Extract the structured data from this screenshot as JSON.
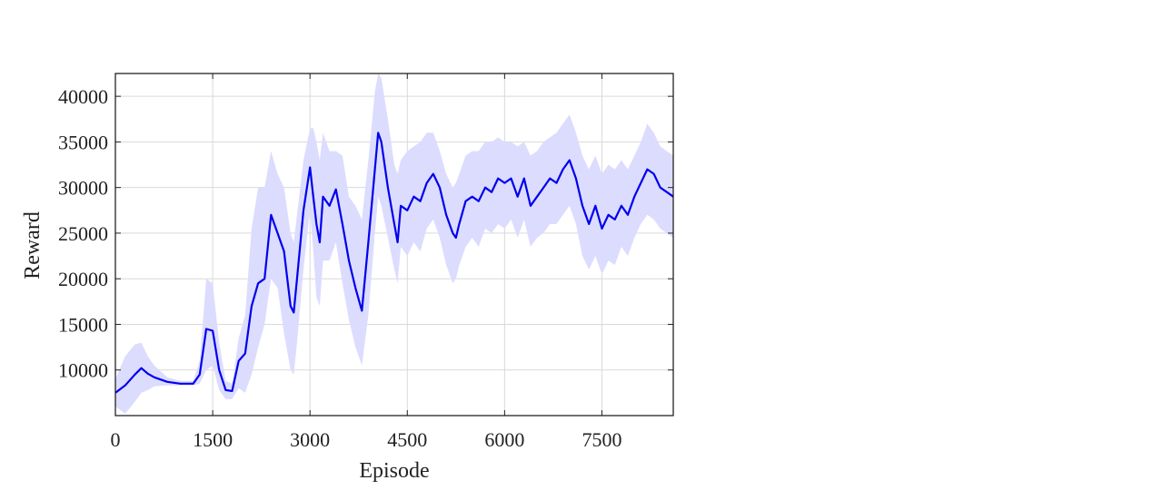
{
  "chart_data": {
    "type": "line",
    "title": "",
    "xlabel": "Episode",
    "ylabel": "Reward",
    "xlim": [
      0,
      8600
    ],
    "ylim": [
      5000,
      42500
    ],
    "xticks": [
      0,
      1500,
      3000,
      4500,
      6000,
      7500
    ],
    "yticks": [
      10000,
      15000,
      20000,
      25000,
      30000,
      35000,
      40000
    ],
    "xtick_labels": [
      "0",
      "1500",
      "3000",
      "4500",
      "6000",
      "7500"
    ],
    "ytick_labels": [
      "10000",
      "15000",
      "20000",
      "25000",
      "30000",
      "35000",
      "40000"
    ],
    "grid": true,
    "colors": {
      "line": "#0000ee",
      "band": "#dcdcff",
      "grid": "#d9d9d9",
      "axis": "#222222"
    },
    "series": [
      {
        "style": "solid line with shaded band (mean ± spread)",
        "x": [
          0,
          150,
          300,
          400,
          500,
          600,
          800,
          1000,
          1200,
          1300,
          1400,
          1500,
          1600,
          1700,
          1800,
          1900,
          2000,
          2100,
          2200,
          2300,
          2400,
          2500,
          2600,
          2700,
          2750,
          2800,
          2900,
          3000,
          3050,
          3100,
          3150,
          3200,
          3300,
          3400,
          3500,
          3600,
          3700,
          3800,
          3900,
          4000,
          4050,
          4100,
          4200,
          4300,
          4350,
          4400,
          4500,
          4600,
          4700,
          4800,
          4900,
          5000,
          5100,
          5200,
          5250,
          5300,
          5400,
          5500,
          5600,
          5700,
          5800,
          5900,
          6000,
          6100,
          6200,
          6300,
          6400,
          6500,
          6600,
          6700,
          6800,
          6900,
          7000,
          7100,
          7200,
          7300,
          7400,
          7500,
          7600,
          7700,
          7800,
          7900,
          8000,
          8100,
          8200,
          8300,
          8400,
          8500,
          8600
        ],
        "y": [
          7500,
          8300,
          9500,
          10200,
          9600,
          9200,
          8700,
          8500,
          8500,
          9500,
          14500,
          14300,
          10000,
          7800,
          7700,
          11000,
          11800,
          17000,
          19500,
          20000,
          27000,
          25000,
          23000,
          17000,
          16300,
          20000,
          27500,
          32200,
          29000,
          26000,
          24000,
          29000,
          28000,
          29800,
          26000,
          22000,
          19000,
          16500,
          24000,
          32000,
          36000,
          35000,
          30000,
          26000,
          24000,
          28000,
          27500,
          29000,
          28500,
          30500,
          31500,
          30000,
          27000,
          25000,
          24500,
          26000,
          28500,
          29000,
          28500,
          30000,
          29500,
          31000,
          30500,
          31000,
          29000,
          31000,
          28000,
          29000,
          30000,
          31000,
          30500,
          32000,
          33000,
          31000,
          28000,
          26000,
          28000,
          25500,
          27000,
          26500,
          28000,
          27000,
          29000,
          30500,
          32000,
          31500,
          30000,
          29500,
          29000
        ],
        "upper": [
          9000,
          11500,
          12800,
          13000,
          11500,
          10500,
          9200,
          8800,
          8800,
          11000,
          20000,
          19500,
          13000,
          8800,
          8500,
          13500,
          16000,
          25500,
          30000,
          30000,
          34000,
          31500,
          30000,
          25000,
          24000,
          27000,
          33000,
          36500,
          36500,
          35000,
          33000,
          36000,
          34000,
          34000,
          33500,
          29000,
          28000,
          26500,
          33000,
          40500,
          42500,
          42000,
          37500,
          32500,
          31500,
          33000,
          34000,
          34500,
          35000,
          36000,
          36000,
          34000,
          31500,
          30000,
          30500,
          31500,
          33500,
          34000,
          34000,
          35000,
          35000,
          35500,
          35000,
          35000,
          34500,
          35000,
          33500,
          34000,
          35000,
          35500,
          36000,
          37000,
          38000,
          36000,
          33500,
          32000,
          33500,
          31500,
          32500,
          32000,
          33000,
          32000,
          33500,
          35000,
          37000,
          36000,
          34500,
          34000,
          33500
        ],
        "lower": [
          6000,
          5200,
          6500,
          7500,
          7800,
          8200,
          8300,
          8300,
          8300,
          8500,
          10000,
          10500,
          7800,
          6800,
          6800,
          8000,
          7500,
          9500,
          12500,
          15000,
          20000,
          19000,
          14000,
          10000,
          9500,
          13000,
          21000,
          27500,
          23000,
          18000,
          17000,
          22000,
          22000,
          24000,
          19500,
          15500,
          12500,
          10500,
          16000,
          25000,
          29000,
          28000,
          24500,
          21000,
          19500,
          23500,
          22500,
          24000,
          23000,
          25500,
          26500,
          24500,
          21500,
          19500,
          20000,
          21500,
          23500,
          24500,
          23500,
          25500,
          25000,
          26000,
          25500,
          26500,
          24500,
          26500,
          23500,
          24500,
          25000,
          26000,
          26000,
          27000,
          28000,
          26000,
          22500,
          21000,
          22500,
          20500,
          22000,
          21500,
          23500,
          22500,
          24500,
          26000,
          27000,
          26500,
          25500,
          25000,
          24500
        ]
      }
    ]
  }
}
